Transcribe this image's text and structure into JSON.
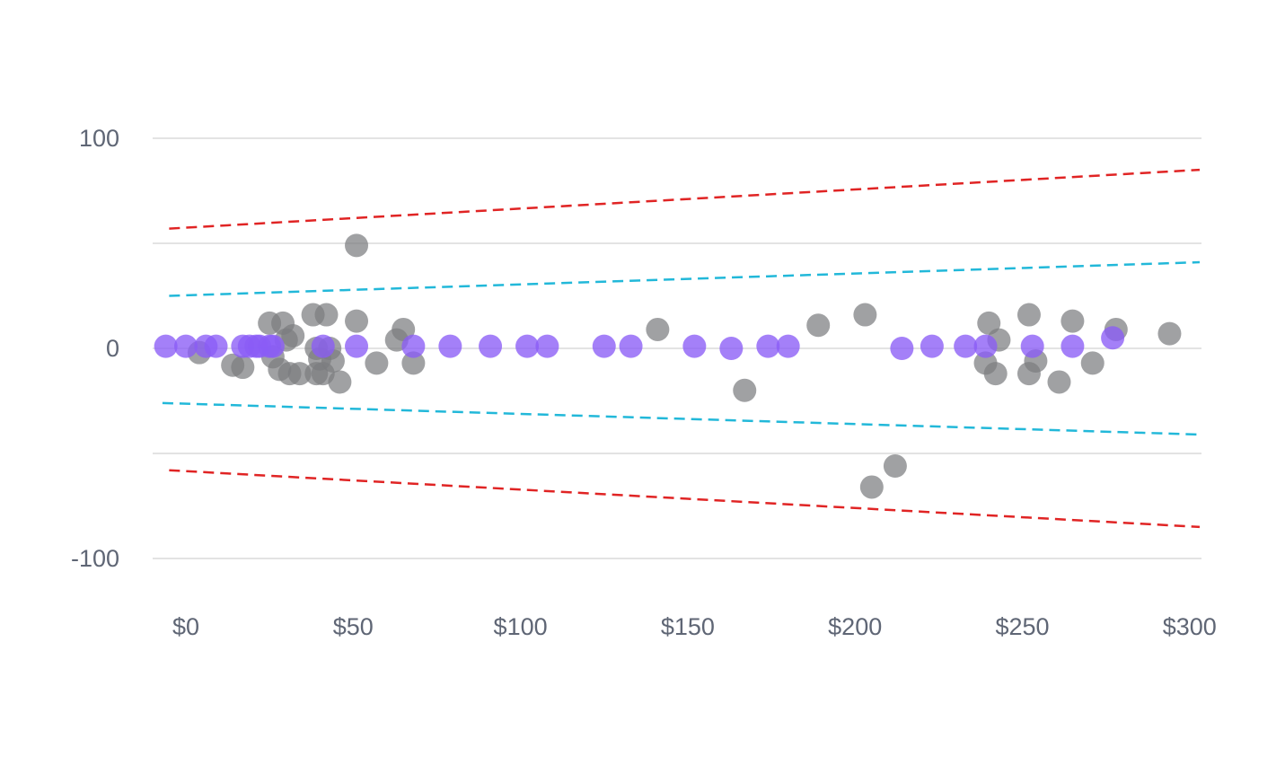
{
  "chart_data": {
    "type": "scatter",
    "title": "",
    "xlabel": "",
    "ylabel": "",
    "xlim": [
      -5,
      303
    ],
    "ylim": [
      -110,
      105
    ],
    "x_ticks": [
      {
        "value": 0,
        "label": "$0"
      },
      {
        "value": 50,
        "label": "$50"
      },
      {
        "value": 100,
        "label": "$100"
      },
      {
        "value": 150,
        "label": "$150"
      },
      {
        "value": 200,
        "label": "$200"
      },
      {
        "value": 250,
        "label": "$250"
      },
      {
        "value": 300,
        "label": "$300"
      }
    ],
    "y_ticks": [
      {
        "value": 100,
        "label": "100"
      },
      {
        "value": 0,
        "label": "0"
      },
      {
        "value": -100,
        "label": "-100"
      }
    ],
    "y_grid": [
      100,
      50,
      0,
      -50,
      -100
    ],
    "grid": true,
    "legend": "none",
    "colors": {
      "observed": "#7b7d80",
      "predicted": "#8b5cf6",
      "outer_band": "#e02424",
      "inner_band": "#22b8d9"
    },
    "series": [
      {
        "type": "scatter",
        "color_key": "observed",
        "points": [
          [
            4,
            -2
          ],
          [
            14,
            -8
          ],
          [
            17,
            -9
          ],
          [
            25,
            12
          ],
          [
            26,
            -4
          ],
          [
            28,
            -10
          ],
          [
            29,
            12
          ],
          [
            30,
            4
          ],
          [
            31,
            -12
          ],
          [
            32,
            6
          ],
          [
            34,
            -12
          ],
          [
            38,
            16
          ],
          [
            39,
            -12
          ],
          [
            39,
            0
          ],
          [
            40,
            -5
          ],
          [
            41,
            -12
          ],
          [
            42,
            16
          ],
          [
            43,
            0
          ],
          [
            44,
            -6
          ],
          [
            46,
            -16
          ],
          [
            51,
            49
          ],
          [
            51,
            13
          ],
          [
            57,
            -7
          ],
          [
            63,
            4
          ],
          [
            65,
            9
          ],
          [
            68,
            -7
          ],
          [
            141,
            9
          ],
          [
            167,
            -20
          ],
          [
            189,
            11
          ],
          [
            203,
            16
          ],
          [
            205,
            -66
          ],
          [
            212,
            -56
          ],
          [
            239,
            -7
          ],
          [
            240,
            12
          ],
          [
            242,
            -12
          ],
          [
            243,
            4
          ],
          [
            252,
            16
          ],
          [
            252,
            -12
          ],
          [
            254,
            -6
          ],
          [
            261,
            -16
          ],
          [
            265,
            13
          ],
          [
            271,
            -7
          ],
          [
            278,
            9
          ],
          [
            294,
            7
          ]
        ]
      },
      {
        "type": "scatter",
        "color_key": "predicted",
        "points": [
          [
            -6,
            1
          ],
          [
            0,
            1
          ],
          [
            6,
            1
          ],
          [
            9,
            1
          ],
          [
            17,
            1
          ],
          [
            19,
            1
          ],
          [
            21,
            1
          ],
          [
            22,
            1
          ],
          [
            25,
            1
          ],
          [
            26,
            1
          ],
          [
            41,
            1
          ],
          [
            51,
            1
          ],
          [
            68,
            1
          ],
          [
            79,
            1
          ],
          [
            91,
            1
          ],
          [
            102,
            1
          ],
          [
            108,
            1
          ],
          [
            125,
            1
          ],
          [
            133,
            1
          ],
          [
            152,
            1
          ],
          [
            163,
            0
          ],
          [
            174,
            1
          ],
          [
            180,
            1
          ],
          [
            214,
            0
          ],
          [
            223,
            1
          ],
          [
            233,
            1
          ],
          [
            239,
            1
          ],
          [
            253,
            1
          ],
          [
            265,
            1
          ],
          [
            277,
            5
          ]
        ]
      },
      {
        "type": "line",
        "color_key": "outer_band",
        "points": [
          [
            -5,
            57
          ],
          [
            303,
            85
          ]
        ]
      },
      {
        "type": "line",
        "color_key": "outer_band",
        "points": [
          [
            -5,
            -58
          ],
          [
            303,
            -85
          ]
        ]
      },
      {
        "type": "line",
        "color_key": "inner_band",
        "points": [
          [
            -5,
            25
          ],
          [
            303,
            41
          ]
        ]
      },
      {
        "type": "line",
        "color_key": "inner_band",
        "points": [
          [
            -7,
            -26
          ],
          [
            303,
            -41
          ]
        ]
      }
    ]
  }
}
